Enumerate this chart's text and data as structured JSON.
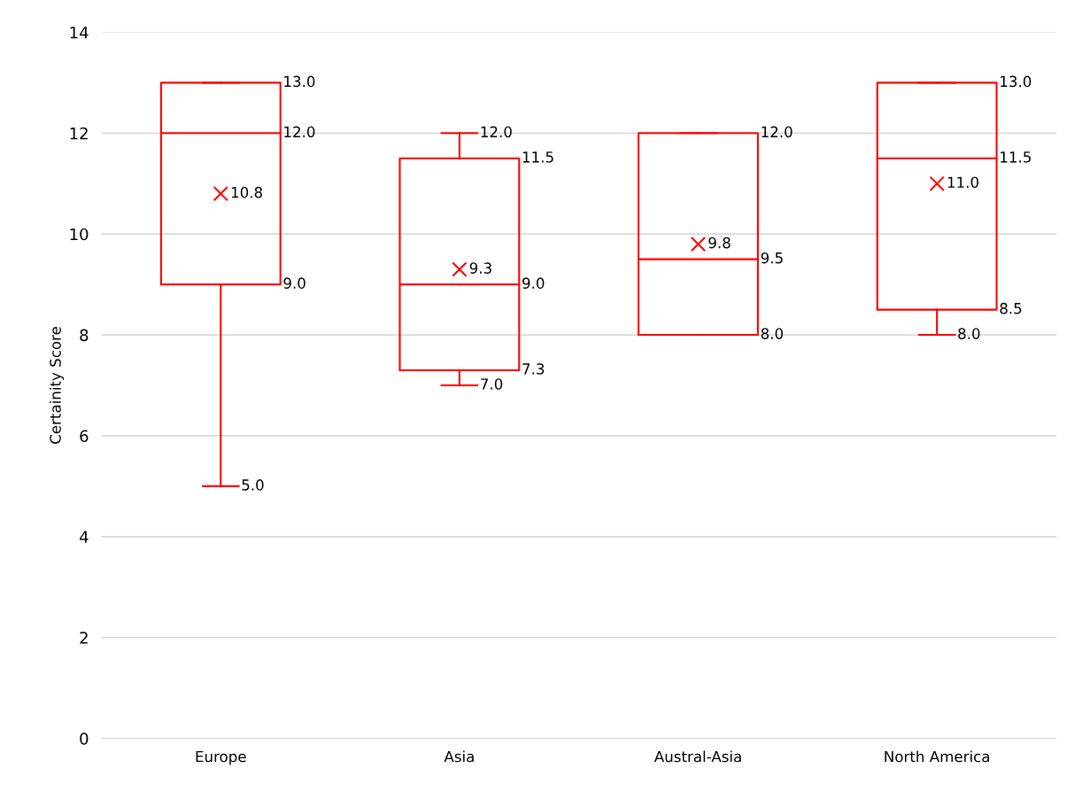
{
  "chart_data": {
    "type": "box",
    "ylabel": "Certainity Score",
    "categories": [
      "Europe",
      "Asia",
      "Austral-Asia",
      "North America"
    ],
    "color": "#ff0000",
    "boxes": [
      {
        "low": 5.0,
        "q1": 9.0,
        "median": 12.0,
        "q3": 13.0,
        "high": 13.0,
        "mean": 10.8
      },
      {
        "low": 7.0,
        "q1": 7.3,
        "median": 9.0,
        "q3": 11.5,
        "high": 12.0,
        "mean": 9.3
      },
      {
        "low": 8.0,
        "q1": 8.0,
        "median": 9.5,
        "q3": 12.0,
        "high": 12.0,
        "mean": 9.8
      },
      {
        "low": 8.0,
        "q1": 8.5,
        "median": 11.5,
        "q3": 13.0,
        "high": 13.0,
        "mean": 11.0
      }
    ],
    "ylim": [
      0,
      14
    ],
    "yticks": [
      0,
      2,
      4,
      6,
      8,
      10,
      12,
      14
    ],
    "grid": "y",
    "marker": "cross",
    "value_labels": [
      {
        "high": "13.0",
        "median": "12.0",
        "mean": "10.8",
        "q1": "9.0",
        "low": "5.0"
      },
      {
        "high": "12.0",
        "q3": "11.5",
        "mean": "9.3",
        "median": "9.0",
        "q1": "7.3",
        "low": "7.0"
      },
      {
        "high": "12.0",
        "mean": "9.8",
        "median": "9.5",
        "low": "8.0"
      },
      {
        "high": "13.0",
        "median": "11.5",
        "mean": "11.0",
        "q1": "8.5",
        "low": "8.0"
      }
    ]
  }
}
